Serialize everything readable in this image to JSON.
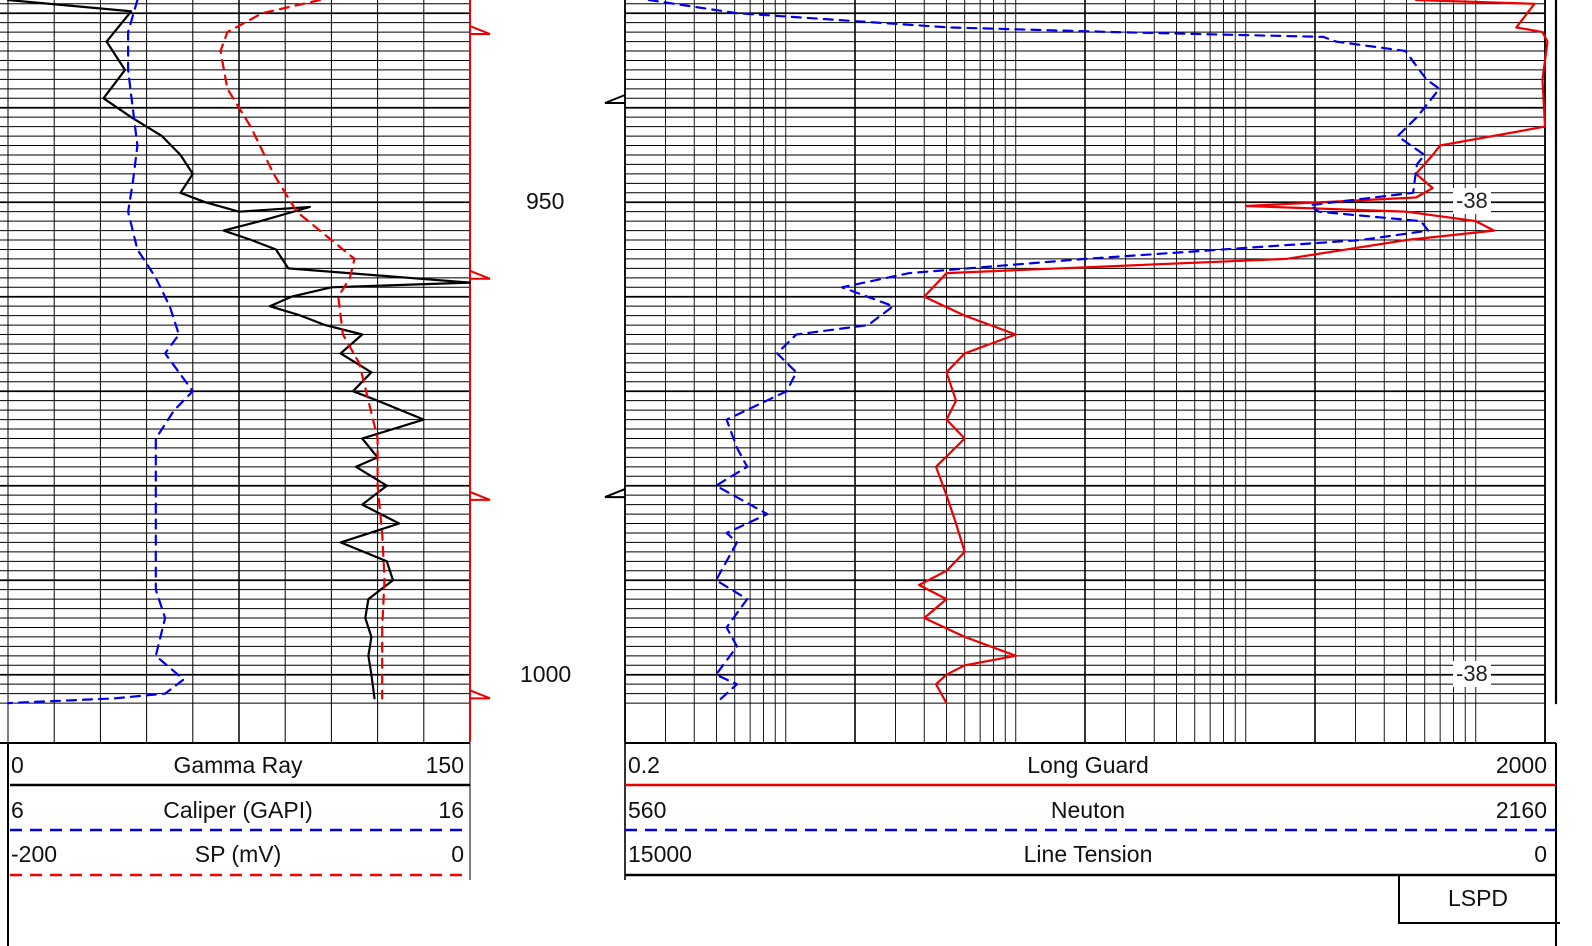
{
  "chart_data": {
    "type": "line",
    "depth_range": [
      930,
      1003
    ],
    "depth_labels": [
      950,
      1000
    ],
    "tension_marks": [
      "-38",
      "-38"
    ],
    "tracks": [
      {
        "name": "track-1",
        "curves": [
          {
            "name": "Gamma Ray",
            "min": "0",
            "max": "150",
            "color": "#000000",
            "style": "solid",
            "points": [
              [
                0,
                928.6
              ],
              [
                40,
                929.8
              ],
              [
                32,
                933
              ],
              [
                38,
                936
              ],
              [
                31,
                939
              ],
              [
                40,
                941
              ],
              [
                50,
                943
              ],
              [
                56,
                945
              ],
              [
                60,
                947
              ],
              [
                56,
                949
              ],
              [
                64,
                950
              ],
              [
                75,
                951
              ],
              [
                98,
                950.5
              ],
              [
                82,
                952
              ],
              [
                70,
                953
              ],
              [
                79,
                954
              ],
              [
                87,
                955
              ],
              [
                91,
                957
              ],
              [
                130,
                958
              ],
              [
                150,
                958.5
              ],
              [
                105,
                959
              ],
              [
                92,
                960
              ],
              [
                85,
                961
              ],
              [
                95,
                962
              ],
              [
                103,
                963
              ],
              [
                115,
                964
              ],
              [
                108,
                966
              ],
              [
                118,
                968
              ],
              [
                112,
                970
              ],
              [
                120,
                971
              ],
              [
                135,
                973
              ],
              [
                115,
                975
              ],
              [
                120,
                977
              ],
              [
                113,
                978
              ],
              [
                123,
                980
              ],
              [
                115,
                982
              ],
              [
                127,
                984
              ],
              [
                108,
                986
              ],
              [
                123,
                988
              ],
              [
                125,
                990
              ],
              [
                117,
                992
              ],
              [
                116,
                994
              ],
              [
                118,
                996
              ],
              [
                117,
                998
              ],
              [
                118,
                1000
              ],
              [
                119,
                1002.5
              ]
            ]
          },
          {
            "name": "Caliper (GAPI)",
            "min": "6",
            "max": "16",
            "color": "#0000ee",
            "style": "dashed",
            "points": [
              [
                8.8,
                928.6
              ],
              [
                8.6,
                932
              ],
              [
                8.6,
                936
              ],
              [
                8.7,
                940
              ],
              [
                8.8,
                944
              ],
              [
                8.7,
                948
              ],
              [
                8.6,
                951
              ],
              [
                8.8,
                955
              ],
              [
                9.2,
                958
              ],
              [
                9.5,
                961
              ],
              [
                9.7,
                964
              ],
              [
                9.4,
                966
              ],
              [
                10,
                970
              ],
              [
                9.6,
                972
              ],
              [
                9.2,
                975
              ],
              [
                9.2,
                979
              ],
              [
                9.2,
                983
              ],
              [
                9.2,
                987
              ],
              [
                9.2,
                991
              ],
              [
                9.4,
                994
              ],
              [
                9.2,
                998
              ],
              [
                9.8,
                1000.5
              ],
              [
                9.4,
                1002
              ],
              [
                8.3,
                1002.5
              ],
              [
                6,
                1003
              ]
            ]
          },
          {
            "name": "SP (mV)",
            "min": "-200",
            "max": "0",
            "color": "#ee0000",
            "style": "dashed",
            "points": [
              [
                -65,
                928.6
              ],
              [
                -90,
                930
              ],
              [
                -105,
                932
              ],
              [
                -108,
                934
              ],
              [
                -105,
                938
              ],
              [
                -95,
                942
              ],
              [
                -85,
                947
              ],
              [
                -75,
                951
              ],
              [
                -60,
                954
              ],
              [
                -50,
                956
              ],
              [
                -52,
                958
              ],
              [
                -57,
                960
              ],
              [
                -55,
                964
              ],
              [
                -48,
                967
              ],
              [
                -45,
                970
              ],
              [
                -40,
                975
              ],
              [
                -40,
                980
              ],
              [
                -38,
                985
              ],
              [
                -37,
                990
              ],
              [
                -38,
                995
              ],
              [
                -38,
                1000
              ],
              [
                -38,
                1002.5
              ]
            ]
          }
        ]
      },
      {
        "name": "track-2",
        "curves": [
          {
            "name": "Long Guard",
            "min": "0.2",
            "max": "2000",
            "color": "#ee0000",
            "style": "solid",
            "points": [
              [
                550,
                928.6
              ],
              [
                1800,
                929
              ],
              [
                1500,
                931.5
              ],
              [
                1950,
                932
              ],
              [
                2050,
                933
              ],
              [
                1950,
                937
              ],
              [
                2000,
                942
              ],
              [
                700,
                944
              ],
              [
                650,
                945
              ],
              [
                550,
                947
              ],
              [
                650,
                948.5
              ],
              [
                550,
                949.5
              ],
              [
                100,
                950.4
              ],
              [
                500,
                951
              ],
              [
                1000,
                952
              ],
              [
                1200,
                953
              ],
              [
                500,
                954
              ],
              [
                150,
                956
              ],
              [
                5,
                957.5
              ],
              [
                4,
                960
              ],
              [
                6,
                962
              ],
              [
                10,
                964
              ],
              [
                6,
                966
              ],
              [
                5,
                968
              ],
              [
                5.5,
                971
              ],
              [
                5,
                973
              ],
              [
                6,
                975
              ],
              [
                4.5,
                978
              ],
              [
                5,
                981
              ],
              [
                5.5,
                984
              ],
              [
                6,
                987
              ],
              [
                5,
                989
              ],
              [
                3.8,
                990.5
              ],
              [
                5,
                992
              ],
              [
                4,
                994
              ],
              [
                6,
                996
              ],
              [
                10,
                998
              ],
              [
                6,
                999
              ],
              [
                5,
                1000
              ],
              [
                4.5,
                1001
              ],
              [
                5,
                1003
              ]
            ]
          },
          {
            "name": "Neuton",
            "min": "560",
            "max": "2160",
            "color": "#0000ee",
            "style": "dashed",
            "points": [
              [
                580,
                928.6
              ],
              [
                660,
                930
              ],
              [
                900,
                931.5
              ],
              [
                1150,
                932
              ],
              [
                1560,
                932.5
              ],
              [
                1590,
                933
              ],
              [
                1760,
                934
              ],
              [
                1815,
                937
              ],
              [
                1850,
                938
              ],
              [
                1790,
                941
              ],
              [
                1740,
                943
              ],
              [
                1810,
                945
              ],
              [
                1790,
                946
              ],
              [
                1780,
                949
              ],
              [
                1530,
                950.3
              ],
              [
                1550,
                951
              ],
              [
                1800,
                952
              ],
              [
                1820,
                953
              ],
              [
                1650,
                954
              ],
              [
                1100,
                956
              ],
              [
                850,
                957.5
              ],
              [
                770,
                959
              ],
              [
                830,
                961
              ],
              [
                800,
                963
              ],
              [
                720,
                964
              ],
              [
                700,
                966
              ],
              [
                720,
                968
              ],
              [
                710,
                970
              ],
              [
                650,
                973
              ],
              [
                660,
                976
              ],
              [
                670,
                978
              ],
              [
                640,
                980
              ],
              [
                690,
                983
              ],
              [
                650,
                985
              ],
              [
                660,
                986
              ],
              [
                640,
                990
              ],
              [
                670,
                992
              ],
              [
                650,
                995
              ],
              [
                660,
                997
              ],
              [
                640,
                1000
              ],
              [
                660,
                1001
              ],
              [
                640,
                1003
              ]
            ]
          },
          {
            "name": "Line Tension",
            "min": "15000",
            "max": "0",
            "color": "#000000",
            "style": "solid",
            "points": [
              [
                200,
                928.6
              ],
              [
                150,
                930
              ],
              [
                160,
                935
              ],
              [
                200,
                940
              ],
              [
                190,
                945
              ],
              [
                175,
                950
              ],
              [
                190,
                955
              ],
              [
                170,
                960
              ],
              [
                200,
                965
              ],
              [
                180,
                970
              ],
              [
                185,
                975
              ],
              [
                190,
                980
              ],
              [
                175,
                985
              ],
              [
                195,
                990
              ],
              [
                180,
                995
              ],
              [
                190,
                1000
              ],
              [
                185,
                1003
              ]
            ]
          }
        ]
      }
    ]
  },
  "legend": {
    "track1": [
      {
        "min": "0",
        "name": "Gamma Ray",
        "max": "150",
        "color": "#000000",
        "dash": false
      },
      {
        "min": "6",
        "name": "Caliper (GAPI)",
        "max": "16",
        "color": "#0000ee",
        "dash": true
      },
      {
        "min": "-200",
        "name": "SP (mV)",
        "max": "0",
        "color": "#ee0000",
        "dash": true
      }
    ],
    "track2": [
      {
        "min": "0.2",
        "name": "Long Guard",
        "max": "2000",
        "color": "#ee0000",
        "dash": false
      },
      {
        "min": "560",
        "name": "Neuton",
        "max": "2160",
        "color": "#0000ee",
        "dash": true
      },
      {
        "min": "15000",
        "name": "Line Tension",
        "max": "0",
        "color": "#000000",
        "dash": false
      }
    ],
    "extra": "LSPD"
  }
}
